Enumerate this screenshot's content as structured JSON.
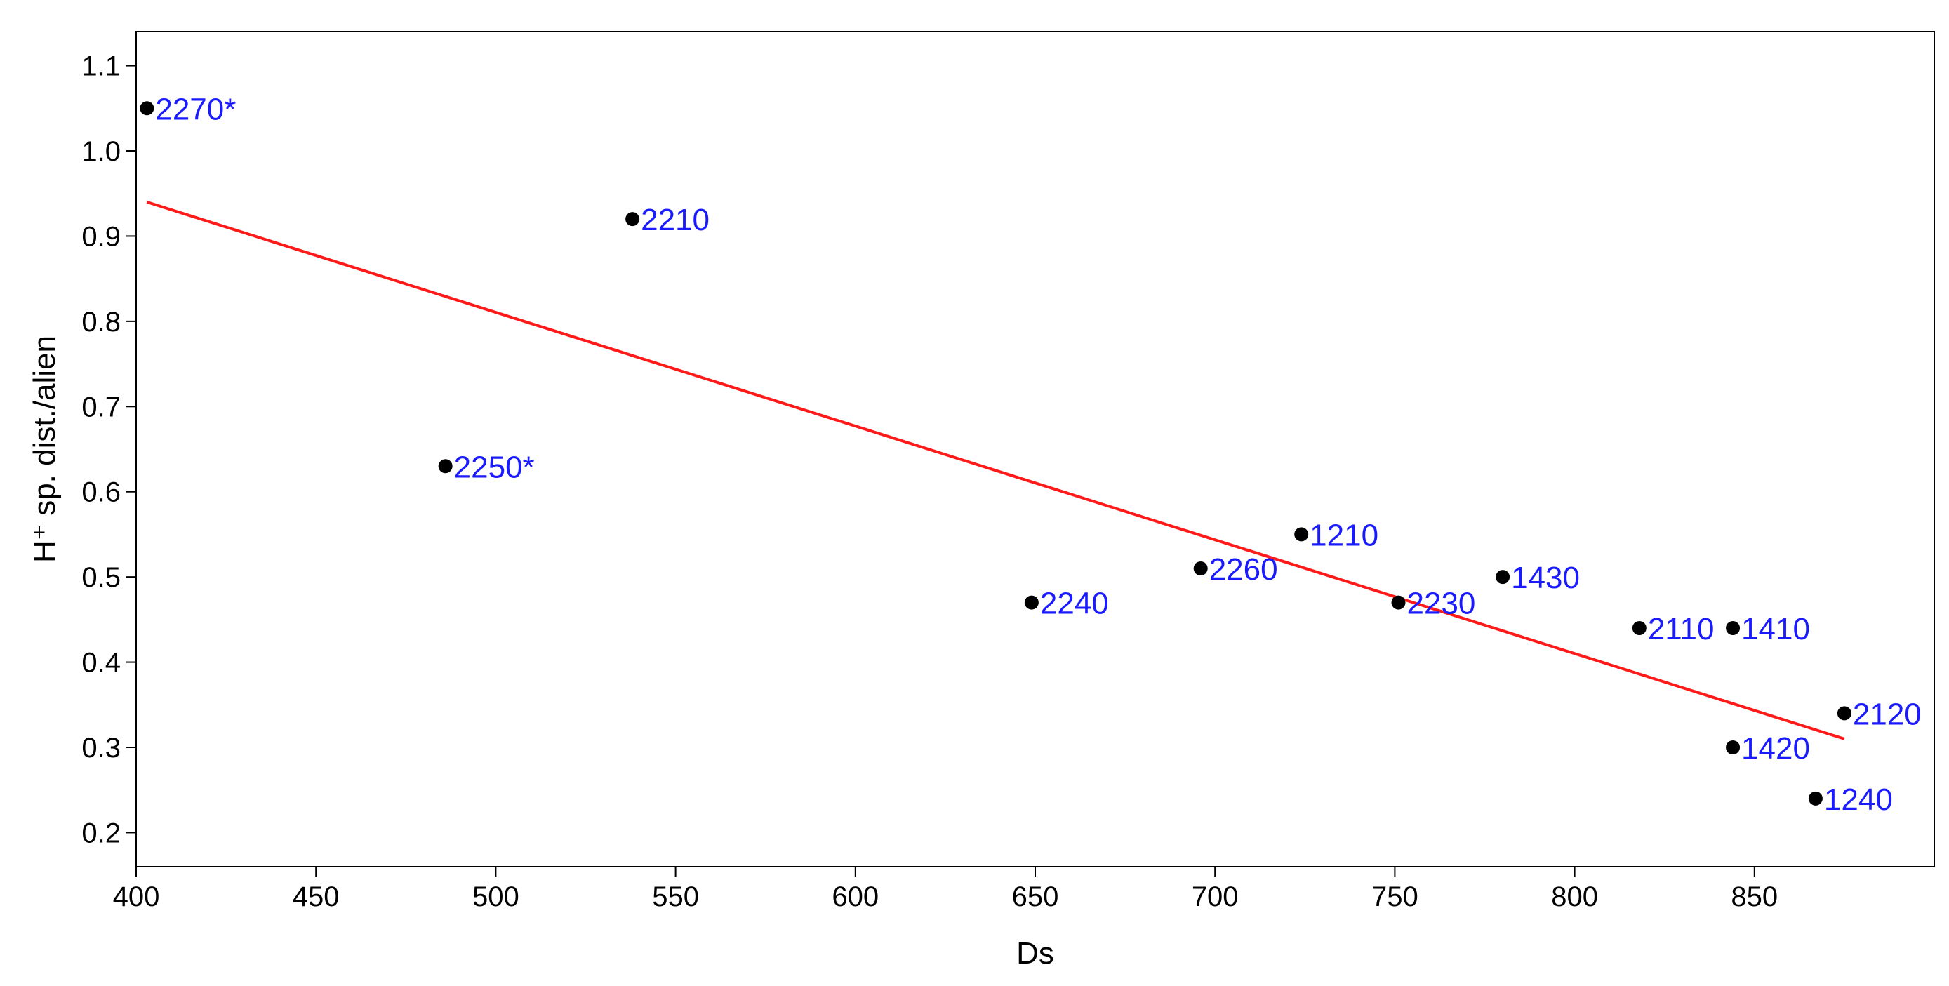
{
  "chart_data": {
    "type": "scatter",
    "title": "",
    "xlabel": "Ds",
    "ylabel": "H⁺ sp. dist./alien",
    "xlim": [
      400,
      900
    ],
    "ylim": [
      0.16,
      1.14
    ],
    "x_ticks": [
      "400",
      "450",
      "500",
      "550",
      "600",
      "650",
      "700",
      "750",
      "800",
      "850"
    ],
    "y_ticks": [
      "0.2",
      "0.3",
      "0.4",
      "0.5",
      "0.6",
      "0.7",
      "0.8",
      "0.9",
      "1.0",
      "1.1"
    ],
    "grid": false,
    "legend": "none",
    "points": [
      {
        "label": "2270*",
        "x": 403,
        "y": 1.05
      },
      {
        "label": "2210",
        "x": 538,
        "y": 0.92
      },
      {
        "label": "2250*",
        "x": 486,
        "y": 0.63
      },
      {
        "label": "2240",
        "x": 649,
        "y": 0.47
      },
      {
        "label": "2260",
        "x": 696,
        "y": 0.51
      },
      {
        "label": "1210",
        "x": 724,
        "y": 0.55
      },
      {
        "label": "2230",
        "x": 751,
        "y": 0.47
      },
      {
        "label": "1430",
        "x": 780,
        "y": 0.5
      },
      {
        "label": "2110",
        "x": 818,
        "y": 0.44
      },
      {
        "label": "1410",
        "x": 844,
        "y": 0.44
      },
      {
        "label": "2120",
        "x": 875,
        "y": 0.34
      },
      {
        "label": "1420",
        "x": 844,
        "y": 0.3
      },
      {
        "label": "1240",
        "x": 867,
        "y": 0.24
      }
    ],
    "trendline": {
      "x": [
        403,
        875
      ],
      "y": [
        0.94,
        0.31
      ]
    },
    "colors": {
      "points": "#000000",
      "point_labels": "#1a1aff",
      "trendline": "#ff1a1a",
      "axes": "#000000"
    }
  }
}
